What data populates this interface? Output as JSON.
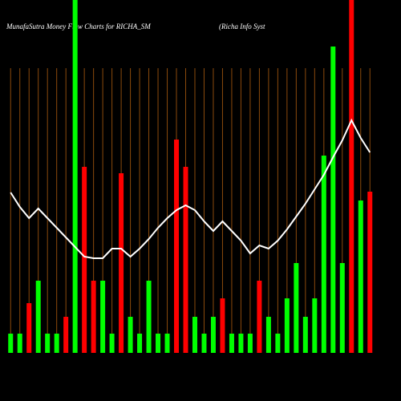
{
  "chart_data": {
    "type": "bar",
    "title": "MunafaSutra  Money Flow  Charts for RICHA_SM",
    "subtitle": "(Richa  Info  Syst",
    "values": [
      24,
      24,
      62,
      90,
      24,
      24,
      45,
      440,
      232,
      90,
      90,
      24,
      224,
      45,
      24,
      90,
      24,
      24,
      266,
      232,
      45,
      24,
      45,
      68,
      24,
      24,
      24,
      90,
      45,
      24,
      68,
      112,
      45,
      68,
      246,
      382,
      112,
      440,
      190,
      201
    ],
    "colors": [
      "#00ff00",
      "#00ff00",
      "#ff0000",
      "#00ff00",
      "#00ff00",
      "#00ff00",
      "#ff0000",
      "#00ff00",
      "#ff0000",
      "#ff0000",
      "#00ff00",
      "#00ff00",
      "#ff0000",
      "#00ff00",
      "#00ff00",
      "#00ff00",
      "#00ff00",
      "#00ff00",
      "#ff0000",
      "#ff0000",
      "#00ff00",
      "#00ff00",
      "#00ff00",
      "#ff0000",
      "#00ff00",
      "#00ff00",
      "#00ff00",
      "#ff0000",
      "#00ff00",
      "#00ff00",
      "#00ff00",
      "#00ff00",
      "#00ff00",
      "#00ff00",
      "#00ff00",
      "#00ff00",
      "#00ff00",
      "#ff0000",
      "#00ff00",
      "#ff0000"
    ],
    "line": {
      "color": "#ffffff",
      "values": [
        200,
        182,
        168,
        180,
        168,
        156,
        144,
        132,
        120,
        118,
        118,
        130,
        130,
        120,
        130,
        142,
        156,
        168,
        178,
        184,
        178,
        164,
        152,
        164,
        152,
        140,
        124,
        134,
        130,
        140,
        154,
        170,
        186,
        204,
        222,
        244,
        265,
        290,
        268,
        250
      ]
    },
    "ylim": [
      0,
      440
    ],
    "grid": true,
    "grid_color": "#8b4a0c"
  }
}
